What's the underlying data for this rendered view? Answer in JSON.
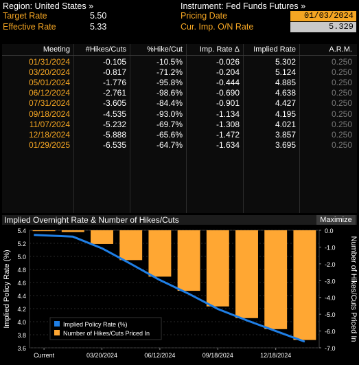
{
  "header": {
    "region_label": "Region: United States »",
    "instrument_label": "Instrument: Fed Funds Futures »",
    "target_rate_label": "Target Rate",
    "target_rate_value": "5.50",
    "effective_rate_label": "Effective Rate",
    "effective_rate_value": "5.33",
    "pricing_date_label": "Pricing Date",
    "pricing_date_value": "01/03/2024",
    "cur_imp_label": "Cur. Imp. O/N Rate",
    "cur_imp_value": "5.329"
  },
  "table": {
    "columns": [
      "Meeting",
      "#Hikes/Cuts",
      "%Hike/Cut",
      "Imp. Rate Δ",
      "Implied Rate",
      "A.R.M."
    ],
    "rows": [
      {
        "meeting": "01/31/2024",
        "hikes": "-0.105",
        "pct": "-10.5%",
        "delta": "-0.026",
        "implied": "5.302",
        "arm": "0.250"
      },
      {
        "meeting": "03/20/2024",
        "hikes": "-0.817",
        "pct": "-71.2%",
        "delta": "-0.204",
        "implied": "5.124",
        "arm": "0.250"
      },
      {
        "meeting": "05/01/2024",
        "hikes": "-1.776",
        "pct": "-95.8%",
        "delta": "-0.444",
        "implied": "4.885",
        "arm": "0.250"
      },
      {
        "meeting": "06/12/2024",
        "hikes": "-2.761",
        "pct": "-98.6%",
        "delta": "-0.690",
        "implied": "4.638",
        "arm": "0.250"
      },
      {
        "meeting": "07/31/2024",
        "hikes": "-3.605",
        "pct": "-84.4%",
        "delta": "-0.901",
        "implied": "4.427",
        "arm": "0.250"
      },
      {
        "meeting": "09/18/2024",
        "hikes": "-4.535",
        "pct": "-93.0%",
        "delta": "-1.134",
        "implied": "4.195",
        "arm": "0.250"
      },
      {
        "meeting": "11/07/2024",
        "hikes": "-5.232",
        "pct": "-69.7%",
        "delta": "-1.308",
        "implied": "4.021",
        "arm": "0.250"
      },
      {
        "meeting": "12/18/2024",
        "hikes": "-5.888",
        "pct": "-65.6%",
        "delta": "-1.472",
        "implied": "3.857",
        "arm": "0.250"
      },
      {
        "meeting": "01/29/2025",
        "hikes": "-6.535",
        "pct": "-64.7%",
        "delta": "-1.634",
        "implied": "3.695",
        "arm": "0.250"
      }
    ]
  },
  "chart_panel": {
    "title": "Implied Overnight Rate & Number of Hikes/Cuts",
    "maximize_label": "Maximize"
  },
  "colors": {
    "accent_orange": "#f5a623",
    "bar_orange": "#ffa733",
    "line_blue": "#1f7fe6",
    "input_bg": "#f5a623",
    "readonly_bg": "#c9c9c9"
  },
  "chart_data": {
    "type": "bar",
    "categories": [
      "Current",
      "01/31/2024",
      "03/20/2024",
      "05/01/2024",
      "06/12/2024",
      "07/31/2024",
      "09/18/2024",
      "11/07/2024",
      "12/18/2024",
      "01/29/2025"
    ],
    "x_tick_labels": [
      "Current",
      "03/20/2024",
      "06/12/2024",
      "09/18/2024",
      "12/18/2024"
    ],
    "series": [
      {
        "name": "Implied Policy Rate (%)",
        "type": "line",
        "axis": "left",
        "color": "#1f7fe6",
        "values": [
          5.329,
          5.302,
          5.124,
          4.885,
          4.638,
          4.427,
          4.195,
          4.021,
          3.857,
          3.695
        ]
      },
      {
        "name": "Number of Hikes/Cuts Priced In",
        "type": "bar",
        "axis": "right",
        "color": "#ffa733",
        "values": [
          0,
          -0.105,
          -0.817,
          -1.776,
          -2.761,
          -3.605,
          -4.535,
          -5.232,
          -5.888,
          -6.535
        ]
      }
    ],
    "ylabel": "Implied Policy Rate (%)",
    "y2label": "Number of Hikes/Cuts Priced In",
    "ylim": [
      3.6,
      5.4
    ],
    "y2lim": [
      -7.0,
      0.0
    ],
    "yticks": [
      "5.4",
      "5.2",
      "5.0",
      "4.8",
      "4.6",
      "4.4",
      "4.2",
      "4.0",
      "3.8",
      "3.6"
    ],
    "y2ticks": [
      "0.0",
      "-1.0",
      "-2.0",
      "-3.0",
      "-4.0",
      "-5.0",
      "-6.0",
      "-7.0"
    ],
    "legend": "bottom-left",
    "grid": true
  }
}
